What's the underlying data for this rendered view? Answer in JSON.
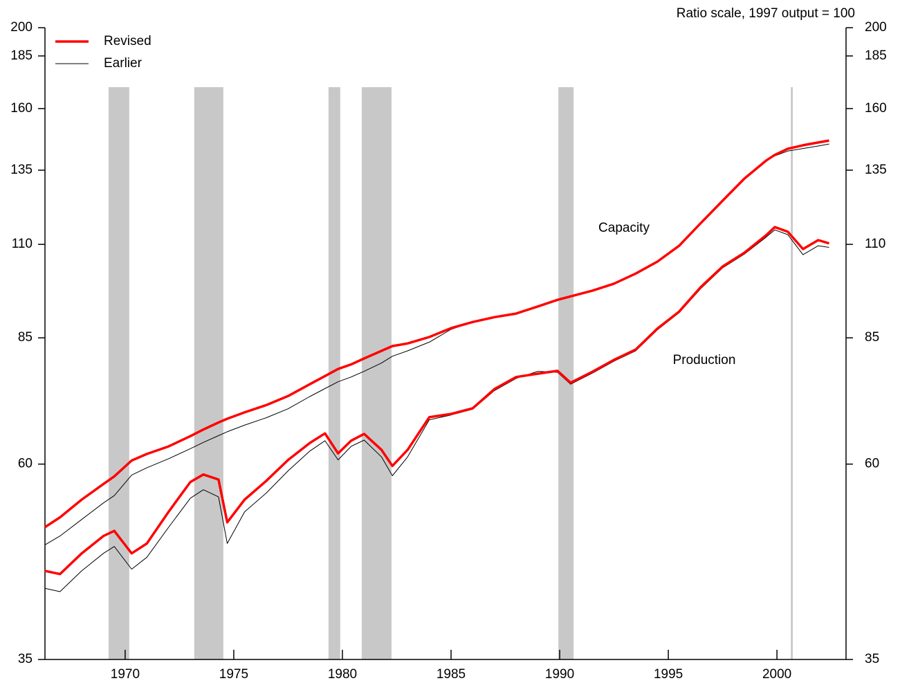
{
  "chart_data": {
    "type": "line",
    "subtitle": "Ratio scale, 1997 output = 100",
    "log_scale": true,
    "legend": "upper left",
    "xlim": [
      1966.31,
      2003.18
    ],
    "ylim": [
      35,
      200
    ],
    "xticks": [
      1970,
      1975,
      1980,
      1985,
      1990,
      1995,
      2000
    ],
    "yticks": [
      35,
      60,
      85,
      110,
      135,
      160,
      185,
      200
    ],
    "recession_color": "#c8c8c8",
    "recessions": [
      [
        1969.24,
        1970.19
      ],
      [
        1973.18,
        1974.52
      ],
      [
        1979.36,
        1979.9
      ],
      [
        1980.89,
        1982.26
      ],
      [
        1989.94,
        1990.64
      ],
      [
        2000.64,
        2000.73
      ]
    ],
    "annotations": [
      "Capacity",
      "Production"
    ],
    "x": [
      1966.3,
      1967,
      1968,
      1969,
      1969.5,
      1970.3,
      1971,
      1972,
      1973,
      1973.6,
      1974.3,
      1974.7,
      1975.5,
      1976.5,
      1977.5,
      1978.5,
      1979.2,
      1979.8,
      1980.4,
      1981,
      1981.8,
      1982.3,
      1983,
      1984,
      1985,
      1986,
      1987,
      1988,
      1989,
      1989.9,
      1990.5,
      1991.5,
      1992.5,
      1993.5,
      1994.5,
      1995.5,
      1996.5,
      1997.5,
      1998.5,
      1999.5,
      1999.9,
      2000.5,
      2001.2,
      2001.9,
      2002.4
    ],
    "series": [
      {
        "name": "Revised",
        "color": "#ff0000",
        "capacity": [
          50.4,
          51.8,
          54.4,
          56.8,
          58.0,
          60.6,
          61.7,
          63.0,
          64.8,
          66.0,
          67.3,
          68.0,
          69.2,
          70.6,
          72.4,
          74.8,
          76.5,
          78.0,
          79.0,
          80.3,
          82.0,
          83.1,
          83.7,
          85.2,
          87.3,
          88.8,
          90.0,
          90.9,
          92.7,
          94.4,
          95.3,
          96.8,
          98.7,
          101.5,
          104.9,
          109.6,
          116.7,
          124.1,
          131.9,
          138.6,
          140.8,
          143.2,
          144.6,
          145.7,
          146.5
        ],
        "production": [
          44.7,
          44.3,
          46.9,
          49.2,
          49.9,
          46.9,
          48.2,
          52.6,
          57.1,
          58.3,
          57.5,
          51.1,
          54.4,
          57.3,
          60.7,
          63.6,
          65.3,
          61.8,
          64.0,
          65.2,
          62.4,
          59.7,
          62.4,
          68.3,
          68.9,
          70.0,
          73.8,
          76.3,
          77.0,
          77.6,
          75.1,
          77.4,
          80.0,
          82.3,
          87.2,
          91.4,
          97.8,
          103.5,
          107.5,
          112.8,
          115.4,
          113.9,
          108.6,
          111.3,
          110.3
        ]
      },
      {
        "name": "Earlier",
        "color": "#000000",
        "capacity": [
          48.0,
          49.2,
          51.5,
          53.9,
          55.0,
          58.2,
          59.4,
          60.9,
          62.6,
          63.7,
          64.9,
          65.6,
          66.8,
          68.2,
          69.9,
          72.3,
          73.9,
          75.3,
          76.3,
          77.5,
          79.3,
          80.8,
          82.0,
          84.0,
          87.0,
          88.8,
          90.0,
          90.9,
          92.7,
          94.4,
          95.3,
          96.8,
          98.7,
          101.5,
          104.9,
          109.6,
          116.7,
          124.1,
          131.9,
          138.6,
          140.4,
          142.3,
          143.3,
          144.3,
          145.1
        ],
        "production": [
          42.6,
          42.2,
          44.7,
          46.9,
          47.8,
          44.9,
          46.4,
          50.4,
          54.6,
          55.9,
          54.8,
          48.2,
          52.6,
          55.4,
          58.9,
          62.2,
          64.0,
          60.7,
          63.0,
          64.1,
          61.2,
          58.1,
          61.2,
          67.8,
          68.7,
          69.8,
          73.5,
          76.0,
          77.5,
          77.3,
          74.8,
          77.1,
          79.7,
          82.0,
          86.9,
          91.1,
          97.4,
          103.1,
          107.1,
          112.2,
          114.5,
          113.0,
          106.9,
          109.6,
          109.1
        ]
      }
    ]
  }
}
